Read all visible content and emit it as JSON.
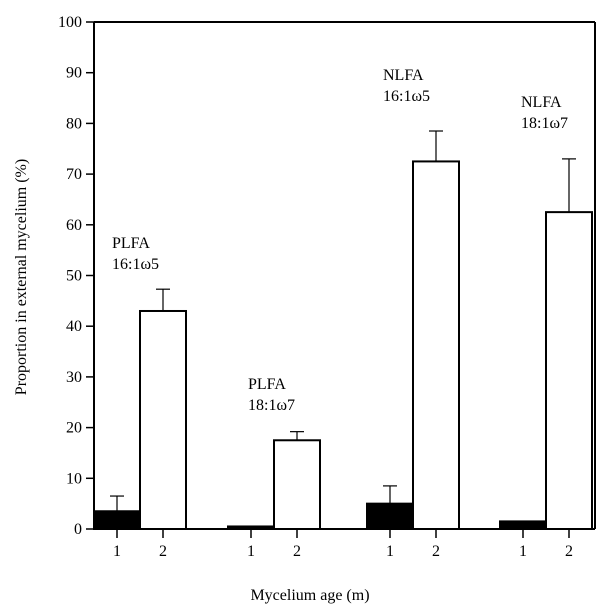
{
  "chart_data": {
    "type": "bar",
    "xlabel": "Mycelium age (m)",
    "ylabel": "Proportion in external mycelium (%)",
    "ylim": [
      0,
      100
    ],
    "yticks": [
      0,
      10,
      20,
      30,
      40,
      50,
      60,
      70,
      80,
      90,
      100
    ],
    "grid": false,
    "series_colors": {
      "1": "#000000",
      "2": "#ffffff"
    },
    "groups": [
      {
        "label_lines": [
          "PLFA",
          "16:1ω5"
        ],
        "bars": [
          {
            "category": "1",
            "value": 3.5,
            "error": 3.0
          },
          {
            "category": "2",
            "value": 43.0,
            "error": 4.3
          }
        ]
      },
      {
        "label_lines": [
          "PLFA",
          "18:1ω7"
        ],
        "bars": [
          {
            "category": "1",
            "value": 0.5,
            "error": 0
          },
          {
            "category": "2",
            "value": 17.5,
            "error": 1.7
          }
        ]
      },
      {
        "label_lines": [
          "NLFA",
          "16:1ω5"
        ],
        "bars": [
          {
            "category": "1",
            "value": 5.0,
            "error": 3.5
          },
          {
            "category": "2",
            "value": 72.5,
            "error": 6.0
          }
        ]
      },
      {
        "label_lines": [
          "NLFA",
          "18:1ω7"
        ],
        "bars": [
          {
            "category": "1",
            "value": 1.5,
            "error": 0
          },
          {
            "category": "2",
            "value": 62.5,
            "error": 10.5
          }
        ]
      }
    ]
  }
}
